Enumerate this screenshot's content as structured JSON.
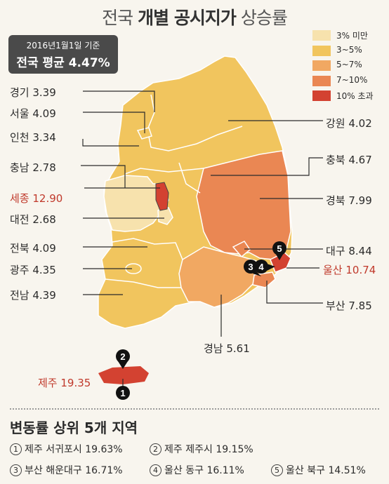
{
  "title": {
    "part1": "전국",
    "part2": "개별 공시지가",
    "part3": "상승률"
  },
  "base": {
    "line1": "2016년1월1일 기준",
    "line2": "전국 평균 4.47%"
  },
  "colors": {
    "c1": "#f7e2ad",
    "c2": "#f1c55e",
    "c3": "#f1a862",
    "c4": "#ea8753",
    "c5": "#d34231"
  },
  "legend": [
    {
      "label": "3% 미만",
      "color": "#f7e2ad"
    },
    {
      "label": "3~5%",
      "color": "#f1c55e"
    },
    {
      "label": "5~7%",
      "color": "#f1a862"
    },
    {
      "label": "7~10%",
      "color": "#ea8753"
    },
    {
      "label": "10% 초과",
      "color": "#d34231"
    }
  ],
  "regions": {
    "gyeonggi": "경기 3.39",
    "seoul": "서울 4.09",
    "incheon": "인천 3.34",
    "chungnam": "충남 2.78",
    "sejong": "세종 12.90",
    "daejeon": "대전 2.68",
    "jeonbuk": "전북 4.09",
    "gwangju": "광주 4.35",
    "jeonnam": "전남 4.39",
    "jeju": "제주 19.35",
    "gangwon": "강원 4.02",
    "chungbuk": "충북 4.67",
    "gyeongbuk": "경북 7.99",
    "daegu": "대구 8.44",
    "ulsan": "울산 10.74",
    "busan": "부산 7.85",
    "gyeongnam": "경남 5.61"
  },
  "markers": [
    "1",
    "2",
    "3",
    "4",
    "5"
  ],
  "ranking": {
    "title": "변동률 상위 5개 지역",
    "items": [
      {
        "num": "1",
        "name": "제주 서귀포시",
        "value": "19.63%"
      },
      {
        "num": "2",
        "name": "제주 제주시",
        "value": "19.15%"
      },
      {
        "num": "3",
        "name": "부산 해운대구",
        "value": "16.71%"
      },
      {
        "num": "4",
        "name": "울산 동구",
        "value": "16.11%"
      },
      {
        "num": "5",
        "name": "울산 북구",
        "value": "14.51%"
      }
    ]
  }
}
